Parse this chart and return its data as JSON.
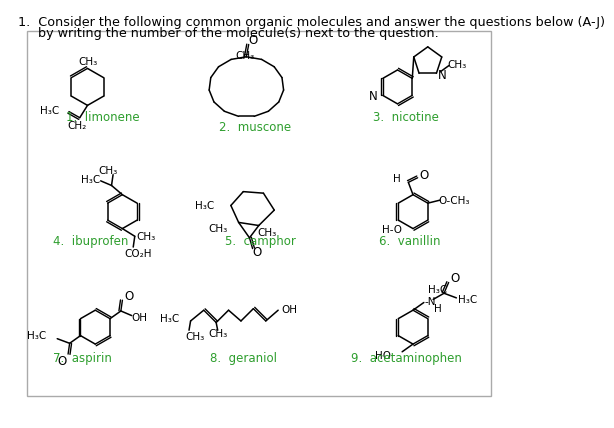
{
  "title_line1": "1.  Consider the following common organic molecules and answer the questions below (A-J)",
  "title_line2": "     by writing the number of the molecule(s) next to the question.",
  "bg_color": "#ffffff",
  "text_color": "#000000",
  "label_color": "#2e9e2e",
  "label_fontsize": 8.5,
  "struct_fontsize": 7.5,
  "title_fontsize": 9.2
}
